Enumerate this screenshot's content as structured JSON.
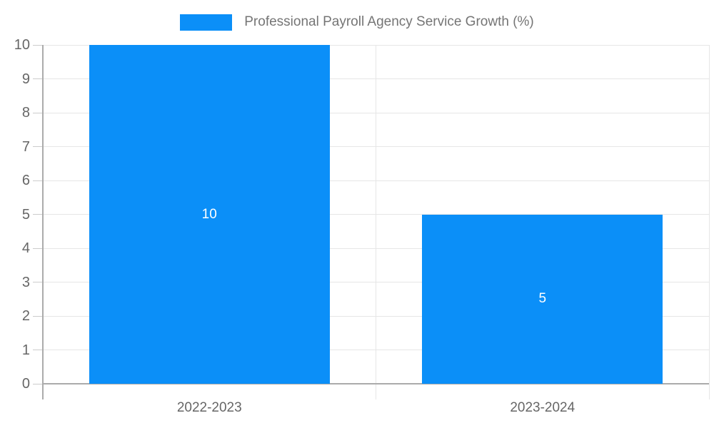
{
  "chart_data": {
    "type": "bar",
    "title": "Professional Payroll Agency Service Growth (%)",
    "legend": {
      "position": "top-center",
      "label": "Professional Payroll Agency Service Growth (%)"
    },
    "categories": [
      "2022-2023",
      "2023-2024"
    ],
    "series": [
      {
        "name": "Professional Payroll Agency Service Growth (%)",
        "values": [
          10,
          5
        ],
        "color": "#0b8ff8"
      }
    ],
    "value_labels": [
      "10",
      "5"
    ],
    "xlabel": "",
    "ylabel": "",
    "ylim": [
      0,
      10
    ],
    "yticks": [
      0,
      1,
      2,
      3,
      4,
      5,
      6,
      7,
      8,
      9,
      10
    ],
    "grid": true,
    "colors": {
      "bar": "#0b8ff8",
      "grid_line": "#e6e6e6",
      "axis_line": "#ababab",
      "tick_mark": "#cccccc",
      "tick_label": "#666666",
      "legend_text": "#757575",
      "bar_value_label": "#ffffff"
    }
  }
}
